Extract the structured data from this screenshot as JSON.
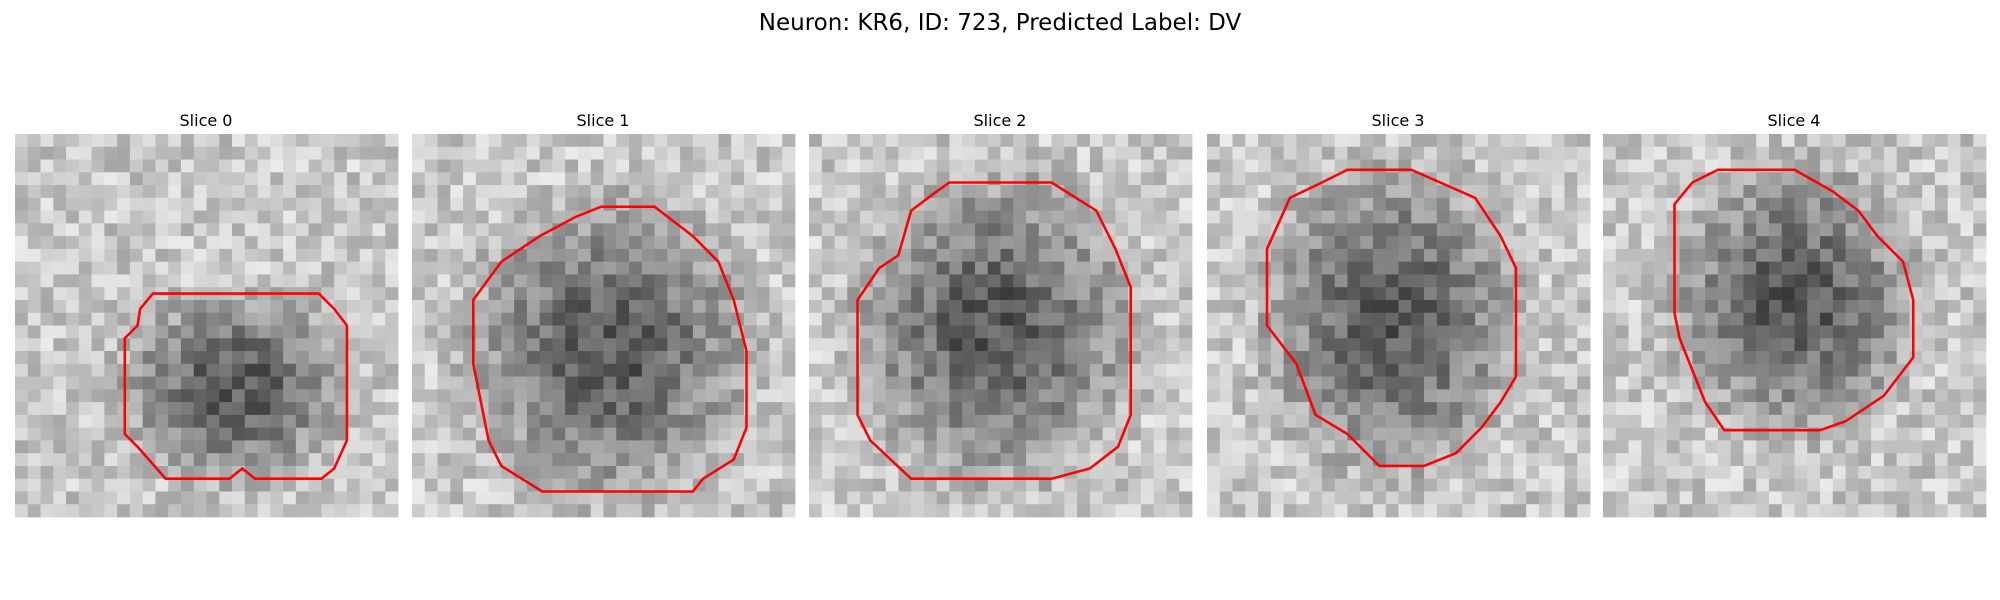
{
  "title": "Neuron: KR6, ID: 723, Predicted Label: DV",
  "panels": [
    {
      "title": "Slice 0"
    },
    {
      "title": "Slice 1"
    },
    {
      "title": "Slice 2"
    },
    {
      "title": "Slice 3"
    },
    {
      "title": "Slice 4"
    }
  ]
}
